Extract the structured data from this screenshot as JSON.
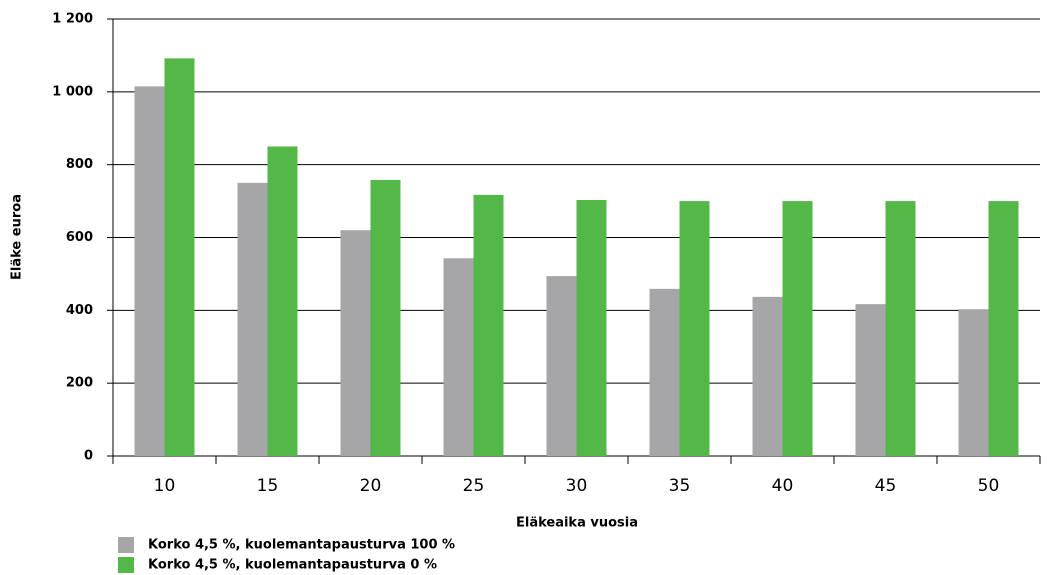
{
  "chart_data": {
    "type": "bar",
    "x_label": "Eläkeaika vuosia",
    "y_label": "Eläke euroa",
    "categories": [
      "10",
      "15",
      "20",
      "25",
      "30",
      "35",
      "40",
      "45",
      "50"
    ],
    "series": [
      {
        "name": "Korko 4,5 %, kuolemantapausturva 100 %",
        "color": "#a6a6a8",
        "values": [
          1015,
          750,
          620,
          543,
          494,
          459,
          437,
          417,
          403
        ]
      },
      {
        "name": "Korko 4,5 %, kuolemantapausturva 0 %",
        "color": "#53b848",
        "values": [
          1092,
          850,
          758,
          717,
          703,
          700,
          700,
          700,
          700
        ]
      }
    ],
    "ylim": [
      0,
      1200
    ],
    "yticks": [
      0,
      200,
      400,
      600,
      800,
      {
        "value": 1000,
        "label": "1 000"
      },
      {
        "value": 1200,
        "label": "1 200"
      }
    ],
    "grid": true
  }
}
